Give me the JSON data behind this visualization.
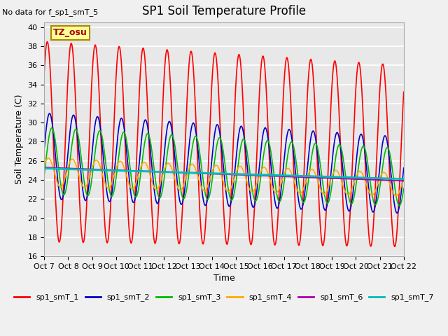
{
  "title": "SP1 Soil Temperature Profile",
  "no_data_note": "No data for f_sp1_smT_5",
  "tz_label": "TZ_osu",
  "xlabel": "Time",
  "ylabel": "Soil Temperature (C)",
  "ylim": [
    16,
    40.5
  ],
  "xlim": [
    0,
    15
  ],
  "x_tick_labels": [
    "Oct 7",
    "Oct 8",
    "Oct 9",
    "Oct 10",
    "Oct 11",
    "Oct 12",
    "Oct 13",
    "Oct 14",
    "Oct 15",
    "Oct 16",
    "Oct 17",
    "Oct 18",
    "Oct 19",
    "Oct 20",
    "Oct 21",
    "Oct 22"
  ],
  "yticks": [
    16,
    18,
    20,
    22,
    24,
    26,
    28,
    30,
    32,
    34,
    36,
    38,
    40
  ],
  "plot_bg": "#e8e8e8",
  "fig_bg": "#f0f0f0",
  "grid_color": "#ffffff",
  "series": {
    "sp1_smT_1": {
      "color": "#ff0000",
      "lw": 1.2
    },
    "sp1_smT_2": {
      "color": "#0000cc",
      "lw": 1.2
    },
    "sp1_smT_3": {
      "color": "#00bb00",
      "lw": 1.2
    },
    "sp1_smT_4": {
      "color": "#ffaa00",
      "lw": 1.2
    },
    "sp1_smT_6": {
      "color": "#aa00aa",
      "lw": 1.5
    },
    "sp1_smT_7": {
      "color": "#00bbbb",
      "lw": 2.0
    }
  },
  "legend_entries": [
    "sp1_smT_1",
    "sp1_smT_2",
    "sp1_smT_3",
    "sp1_smT_4",
    "sp1_smT_6",
    "sp1_smT_7"
  ],
  "legend_colors": [
    "#ff0000",
    "#0000cc",
    "#00bb00",
    "#ffaa00",
    "#aa00aa",
    "#00bbbb"
  ]
}
